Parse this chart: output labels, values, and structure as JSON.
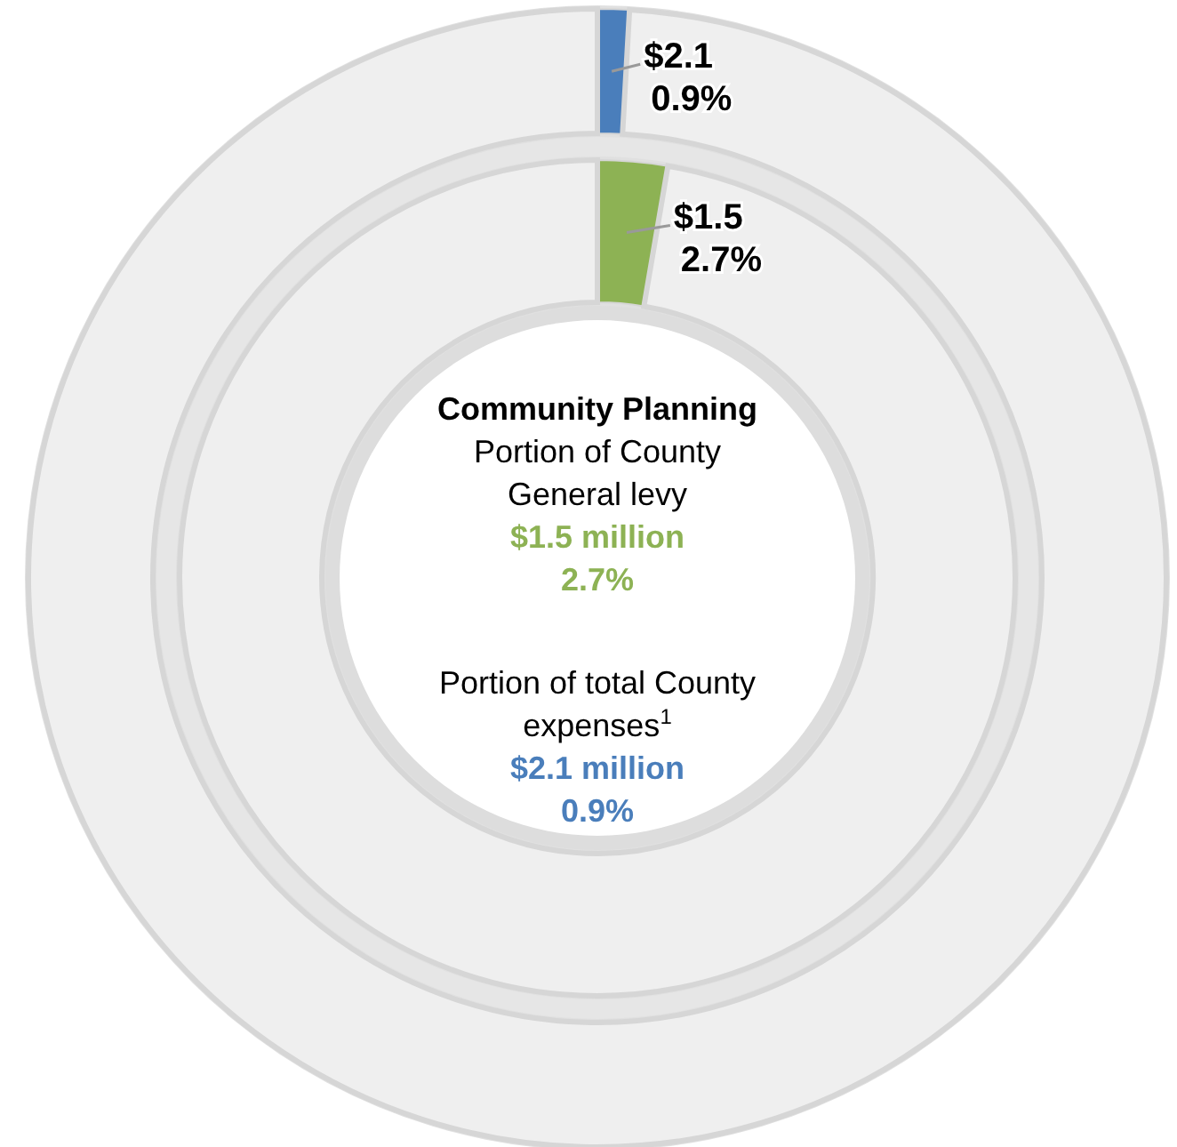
{
  "chart_data": {
    "type": "donut",
    "title": "Community Planning",
    "annotations": [
      "Portion of County\nGeneral levy",
      "$1.5 million\n2.7%",
      "Portion of total County\nexpenses$^{1}$",
      "$2.1 million\n0.9%"
    ],
    "categories": [
      null,
      null
    ],
    "series": [
      {
        "values": [
          2.7,
          97.3
        ],
        "colors": [
          "#8db254",
          "#efefef"
        ],
        "value_labels": [
          "$1.5\n2.7%",
          null
        ]
      },
      {
        "values": [
          0.9,
          99.1
        ],
        "colors": [
          "#4a7ebb",
          "#efefef"
        ],
        "value_labels": [
          "$2.1\n0.9%",
          null
        ]
      }
    ]
  }
}
